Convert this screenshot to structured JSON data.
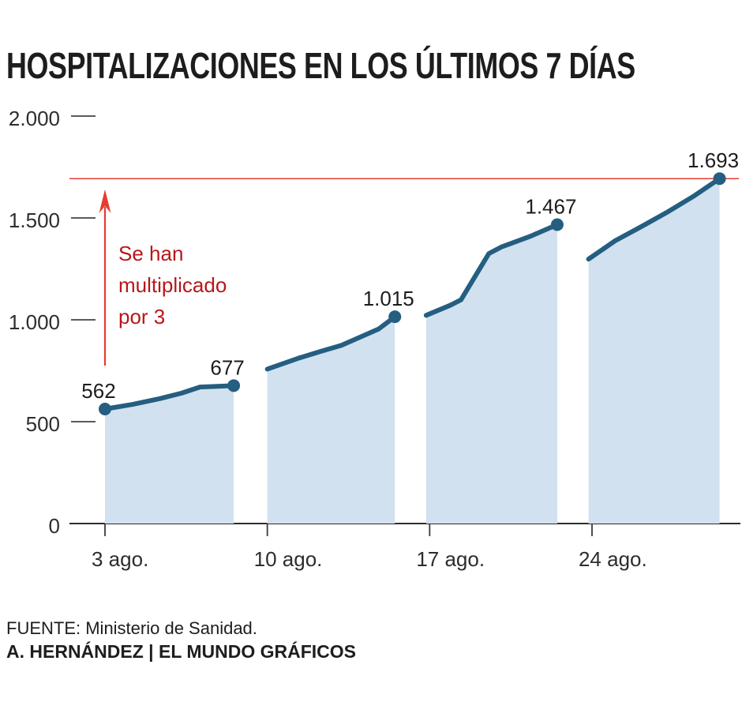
{
  "chart_data": {
    "type": "area",
    "title": "HOSPITALIZACIONES EN LOS ÚLTIMOS 7 DÍAS",
    "ylabel": "",
    "xlabel": "",
    "ylim": [
      0,
      2000
    ],
    "grid": false,
    "legend": "none",
    "yticks": [
      {
        "value": 0,
        "label": "0"
      },
      {
        "value": 500,
        "label": "500"
      },
      {
        "value": 1000,
        "label": "1.000"
      },
      {
        "value": 1500,
        "label": "1.500"
      },
      {
        "value": 2000,
        "label": "2.000"
      }
    ],
    "xticks": [
      {
        "day": 0,
        "label": "3 ago."
      },
      {
        "day": 7,
        "label": "10 ago."
      },
      {
        "day": 14,
        "label": "17 ago."
      },
      {
        "day": 21,
        "label": "24 ago."
      }
    ],
    "reference_line": {
      "value": 1693
    },
    "annotation": {
      "lines": [
        "Se han",
        "multiplicado",
        "por 3"
      ],
      "arrow_at_day": 0,
      "arrow_from_value": 775,
      "arrow_to_value": 1640
    },
    "segments": [
      {
        "points": [
          [
            0,
            562
          ],
          [
            1.2,
            585
          ],
          [
            2.4,
            614
          ],
          [
            3.3,
            640
          ],
          [
            4.1,
            670
          ],
          [
            5.55,
            677
          ]
        ],
        "markers": [
          {
            "point": 0,
            "label": "562"
          },
          {
            "point": 5,
            "label": "677"
          }
        ]
      },
      {
        "points": [
          [
            7.0,
            758
          ],
          [
            8.3,
            810
          ],
          [
            9.3,
            845
          ],
          [
            10.2,
            875
          ],
          [
            11.2,
            925
          ],
          [
            11.8,
            955
          ],
          [
            12.5,
            1015
          ]
        ],
        "markers": [
          {
            "point": 6,
            "label": "1.015"
          }
        ]
      },
      {
        "points": [
          [
            13.85,
            1022
          ],
          [
            14.9,
            1072
          ],
          [
            15.35,
            1098
          ],
          [
            16.55,
            1325
          ],
          [
            17.1,
            1358
          ],
          [
            18.3,
            1408
          ],
          [
            19.5,
            1467
          ]
        ],
        "markers": [
          {
            "point": 6,
            "label": "1.467"
          }
        ]
      },
      {
        "points": [
          [
            20.85,
            1298
          ],
          [
            22.0,
            1388
          ],
          [
            23.2,
            1462
          ],
          [
            24.3,
            1532
          ],
          [
            25.4,
            1608
          ],
          [
            26.5,
            1693
          ]
        ],
        "markers": [
          {
            "point": 5,
            "label": "1.693"
          }
        ]
      }
    ],
    "colors": {
      "line": "#245e80",
      "area_fill": "#d2e1f0",
      "reference_red": "#e63c30",
      "annotation_red": "#b6171a",
      "axis": "#2d2d2d"
    }
  },
  "footer": {
    "source": "FUENTE: Ministerio de Sanidad.",
    "credit": "A. HERNÁNDEZ | EL MUNDO GRÁFICOS"
  }
}
